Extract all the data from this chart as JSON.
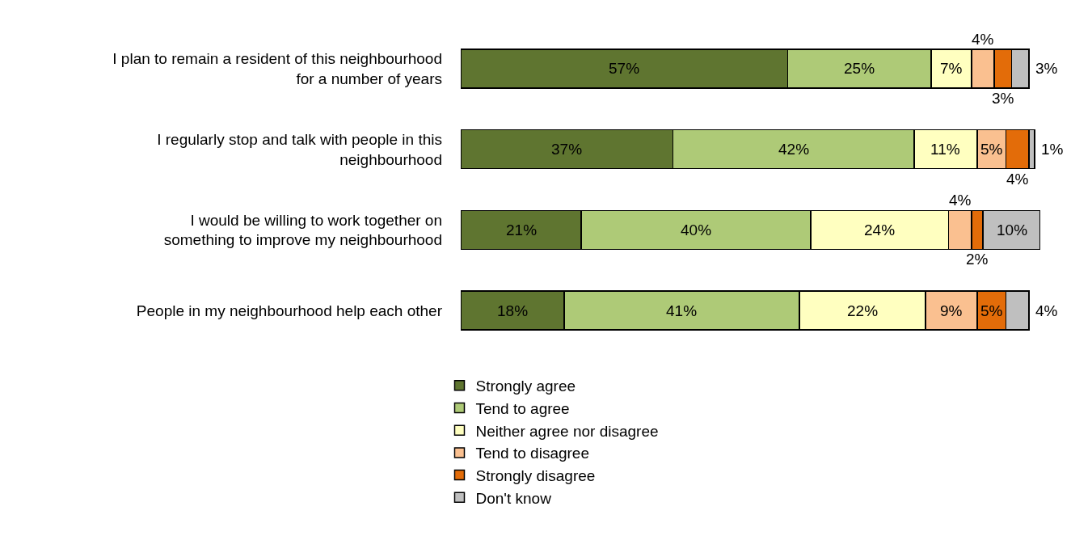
{
  "chart_data": {
    "type": "bar",
    "orientation": "horizontal",
    "stacked": true,
    "tick_labels": "y",
    "legend": "bottom",
    "categories": [
      "I plan to remain a resident of this neighbourhood\nfor a number of years",
      "I regularly stop and talk with people in this\nneighbourhood",
      "I would be willing to work together on\nsomething to improve my neighbourhood",
      "People in my neighbourhood help each other"
    ],
    "series": [
      {
        "name": "Strongly agree",
        "color": "#5f7530",
        "values": [
          57,
          37,
          21,
          18
        ],
        "value_labels": [
          "57%",
          "37%",
          "21%",
          "18%"
        ]
      },
      {
        "name": "Tend to agree",
        "color": "#aeca77",
        "values": [
          25,
          42,
          40,
          41
        ],
        "value_labels": [
          "25%",
          "42%",
          "40%",
          "41%"
        ]
      },
      {
        "name": "Neither agree nor disagree",
        "color": "#ffffc0",
        "values": [
          7,
          11,
          24,
          22
        ],
        "value_labels": [
          "7%",
          "11%",
          "24%",
          "22%"
        ]
      },
      {
        "name": "Tend to disagree",
        "color": "#fac090",
        "values": [
          4,
          5,
          4,
          9
        ],
        "value_labels": [
          "4%",
          "5%",
          "4%",
          "9%"
        ]
      },
      {
        "name": "Strongly disagree",
        "color": "#e36c09",
        "values": [
          3,
          4,
          2,
          5
        ],
        "value_labels": [
          "3%",
          "4%",
          "2%",
          "5%"
        ]
      },
      {
        "name": "Don't know",
        "color": "#bfbfbf",
        "values": [
          3,
          1,
          10,
          4
        ],
        "value_labels": [
          "3%",
          "1%",
          "10%",
          "4%"
        ]
      }
    ]
  }
}
